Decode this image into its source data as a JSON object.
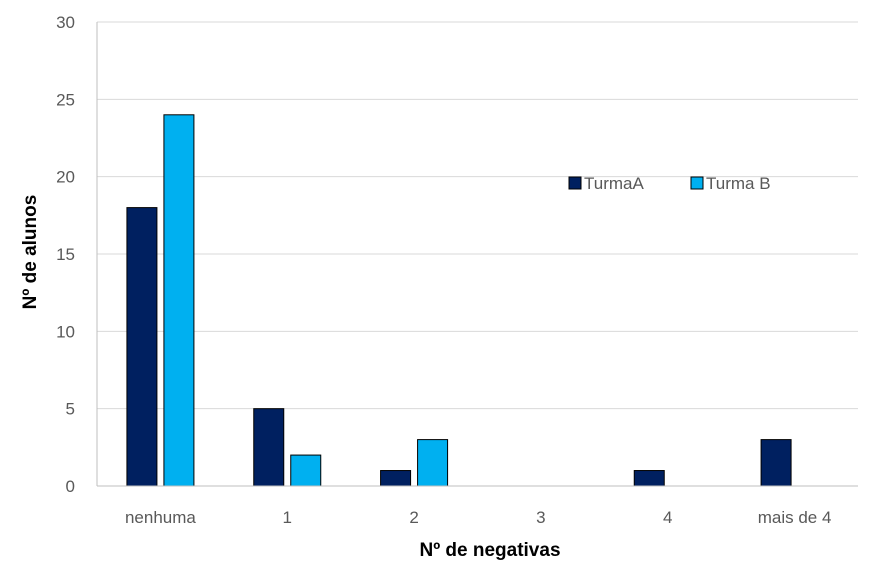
{
  "chart_data": {
    "type": "bar",
    "categories": [
      "nenhuma",
      "1",
      "2",
      "3",
      "4",
      "mais de 4"
    ],
    "series": [
      {
        "name": "TurmaA",
        "values": [
          18,
          5,
          1,
          0,
          1,
          3
        ],
        "color": "#002060"
      },
      {
        "name": "Turma B",
        "values": [
          24,
          2,
          3,
          0,
          0,
          0
        ],
        "color": "#00B0F0"
      }
    ],
    "xlabel": "Nº de negativas",
    "ylabel": "Nº de alunos",
    "ylim": [
      0,
      30
    ],
    "yticks": [
      0,
      5,
      10,
      15,
      20,
      25,
      30
    ],
    "grid": true,
    "legend_position": "right-middle",
    "gridline_color": "#D9D9D9",
    "bar_outline_color": "#000000"
  }
}
